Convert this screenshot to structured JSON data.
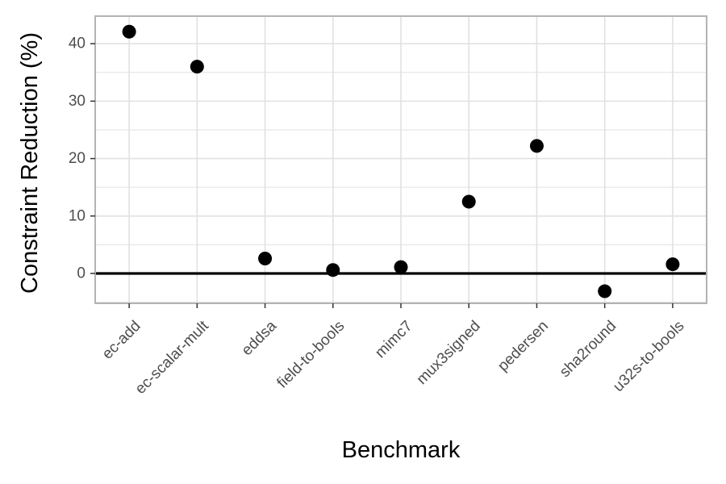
{
  "chart_data": {
    "type": "scatter",
    "xlabel": "Benchmark",
    "ylabel": "Constraint Reduction (%)",
    "categories": [
      "ec-add",
      "ec-scalar-mult",
      "eddsa",
      "field-to-bools",
      "mimc7",
      "mux3signed",
      "pedersen",
      "sha2round",
      "u32s-to-bools"
    ],
    "values": [
      42.1,
      36.0,
      2.6,
      0.6,
      1.1,
      12.5,
      22.2,
      -3.1,
      1.6
    ],
    "ylim": [
      -5.2,
      44.8
    ],
    "yticks": [
      0,
      10,
      20,
      30,
      40
    ],
    "ytick_labels": [
      "0",
      "10",
      "20",
      "30",
      "40"
    ],
    "reference_line_y": 0,
    "grid": true,
    "theme": "light",
    "colors": {
      "points": "#000000",
      "grid": "#e1e1e1",
      "panel_border": "#b3b3b3",
      "reference_line": "#000000"
    }
  }
}
